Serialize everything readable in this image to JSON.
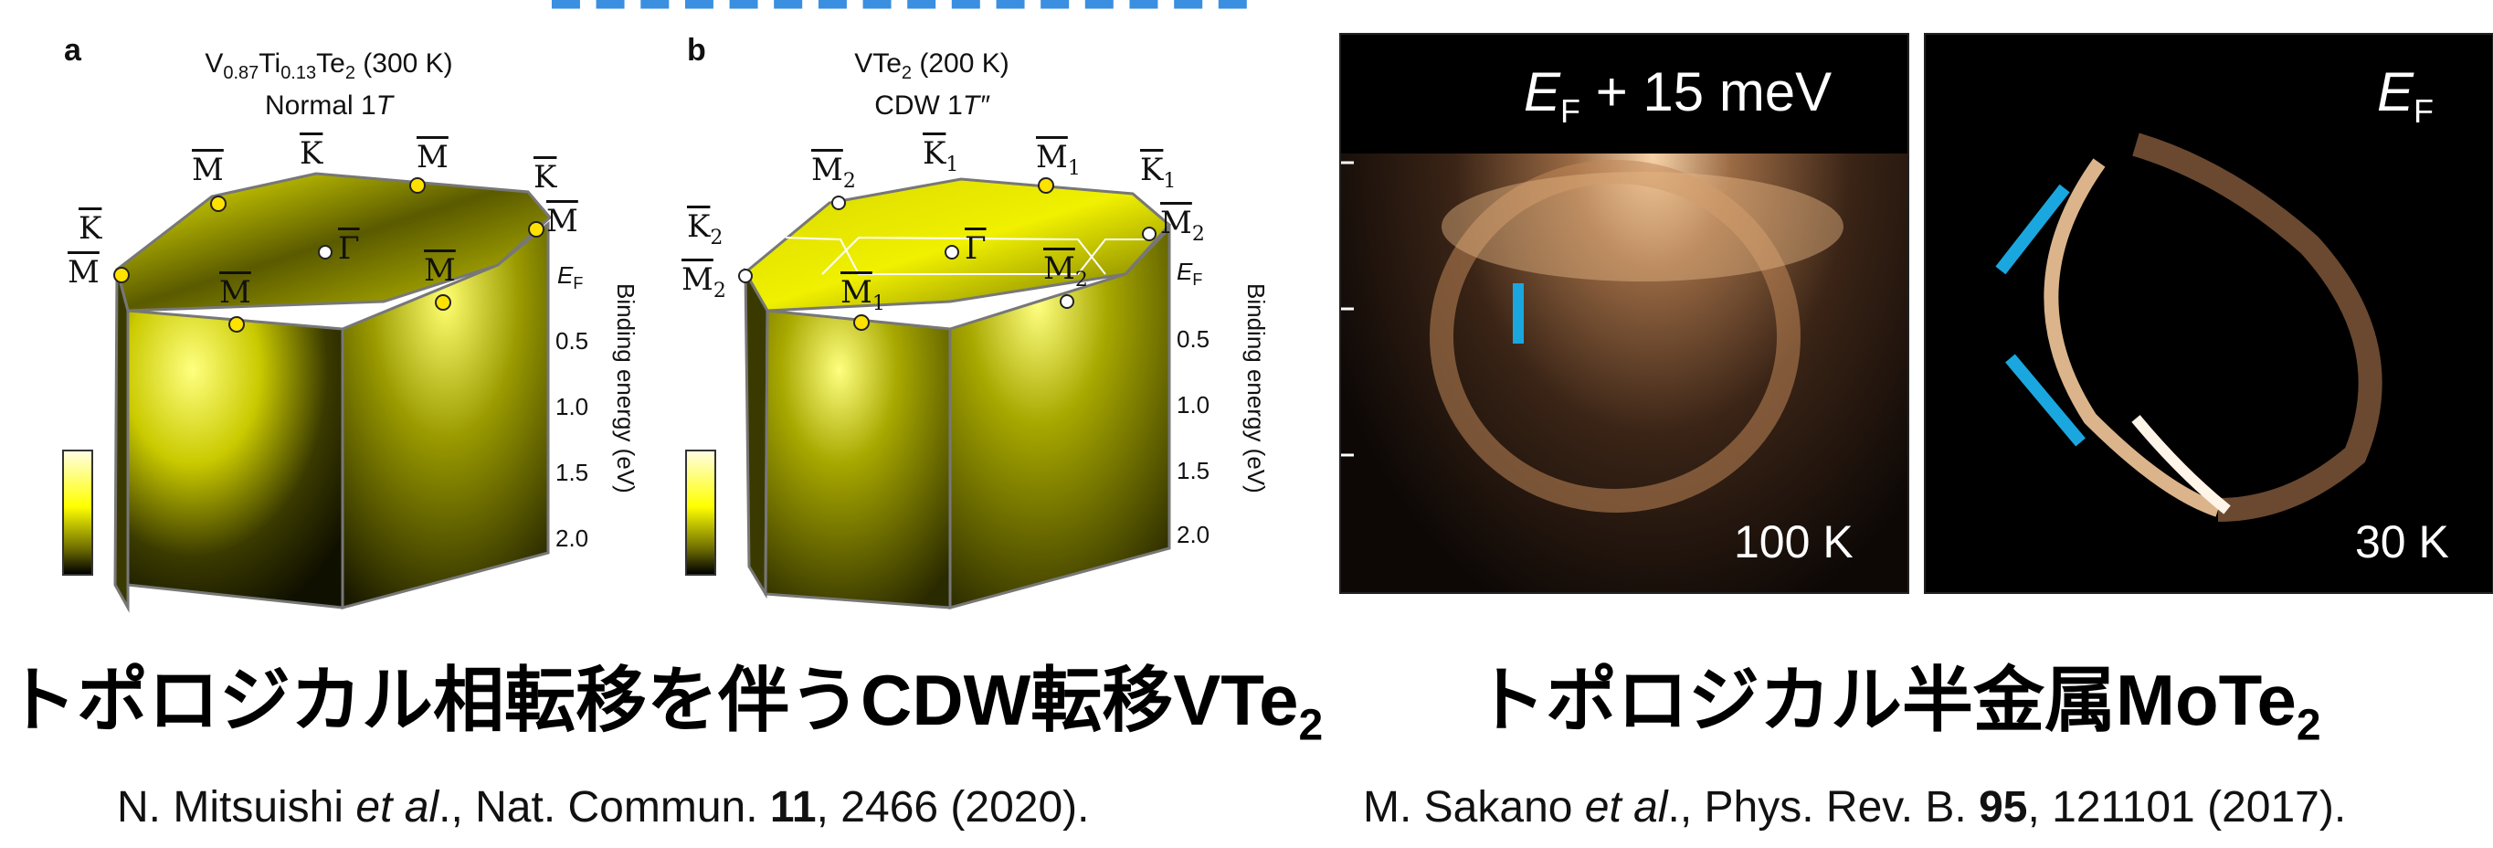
{
  "banner": {
    "text": "■■■■■■■■■■■■■■■■"
  },
  "panel_a": {
    "letter": "a",
    "title_main": "V",
    "title_sub1": "0.87",
    "title_mid": "Ti",
    "title_sub2": "0.13",
    "title_end": "Te",
    "title_sub3": "2",
    "title_temp": " (300 K)",
    "subtitle": "Normal 1",
    "subtitle_italic": "T",
    "points": {
      "M": "M",
      "K": "K",
      "Gamma": "Γ"
    },
    "ef": "E",
    "ef_sub": "F",
    "ticks": [
      "0.5",
      "1.0",
      "1.5",
      "2.0"
    ],
    "axis": "Binding energy (eV)"
  },
  "panel_b": {
    "letter": "b",
    "title_main": "VTe",
    "title_sub": "2",
    "title_temp": " (200 K)",
    "subtitle": "CDW 1",
    "subtitle_italic": "T″",
    "points": {
      "M": "M",
      "K": "K",
      "Gamma": "Γ",
      "sub1": "1",
      "sub2": "2"
    },
    "ef": "E",
    "ef_sub": "F",
    "ticks": [
      "0.5",
      "1.0",
      "1.5",
      "2.0"
    ],
    "axis": "Binding energy (eV)"
  },
  "mote": {
    "left_label_e": "E",
    "left_label_sub": "F",
    "left_label_rest": " + 15 meV",
    "left_temp": "100 K",
    "right_label_e": "E",
    "right_label_sub": "F",
    "right_temp": "30 K",
    "accent_color": "#1aa7e0"
  },
  "captions": {
    "left_main": "トポロジカル相転移を伴うCDW転移VTe",
    "left_sub": "2",
    "right_main": "トポロジカル半金属MoTe",
    "right_sub": "2"
  },
  "refs": {
    "left_authors": "N. Mitsuishi ",
    "left_etal": "et al",
    "left_journal": "., Nat. Commun. ",
    "left_volume": "11",
    "left_rest": ", 2466 (2020).",
    "right_authors": "M. Sakano ",
    "right_etal": "et al",
    "right_journal": "., Phys. Rev. B. ",
    "right_volume": "95",
    "right_rest": ", 121101 (2017)."
  }
}
